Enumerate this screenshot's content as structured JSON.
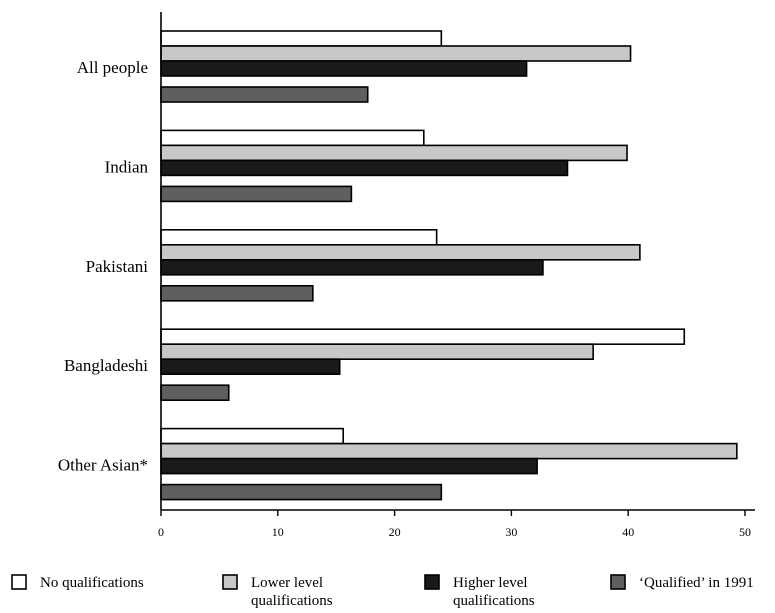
{
  "chart_data": {
    "type": "bar",
    "orientation": "horizontal",
    "categories": [
      "All people",
      "Indian",
      "Pakistani",
      "Bangladeshi",
      "Other Asian*"
    ],
    "series": [
      {
        "name": "No qualifications",
        "color": "#ffffff",
        "values": [
          24,
          22.5,
          23.6,
          44.8,
          15.6
        ]
      },
      {
        "name": "Lower level qualifications",
        "color": "#c8c8c8",
        "values": [
          40.2,
          39.9,
          41.0,
          37.0,
          49.3
        ]
      },
      {
        "name": "Higher level qualifications",
        "color": "#1a1a1a",
        "values": [
          31.3,
          34.8,
          32.7,
          15.3,
          32.2
        ]
      },
      {
        "name": "'Qualified' in 1991",
        "color": "#5f5f5f",
        "values": [
          17.7,
          16.3,
          13.0,
          5.8,
          24.0
        ]
      }
    ],
    "xlim": [
      0,
      50
    ],
    "xticks": [
      0,
      10,
      20,
      30,
      40,
      50
    ],
    "grid": false,
    "legend_position": "bottom"
  },
  "legend": [
    {
      "label_lines": [
        "No qualifications"
      ]
    },
    {
      "label_lines": [
        "Lower level",
        "qualifications"
      ]
    },
    {
      "label_lines": [
        "Higher level",
        "qualifications"
      ]
    },
    {
      "label_lines": [
        "‘Qualified’ in 1991"
      ]
    }
  ]
}
